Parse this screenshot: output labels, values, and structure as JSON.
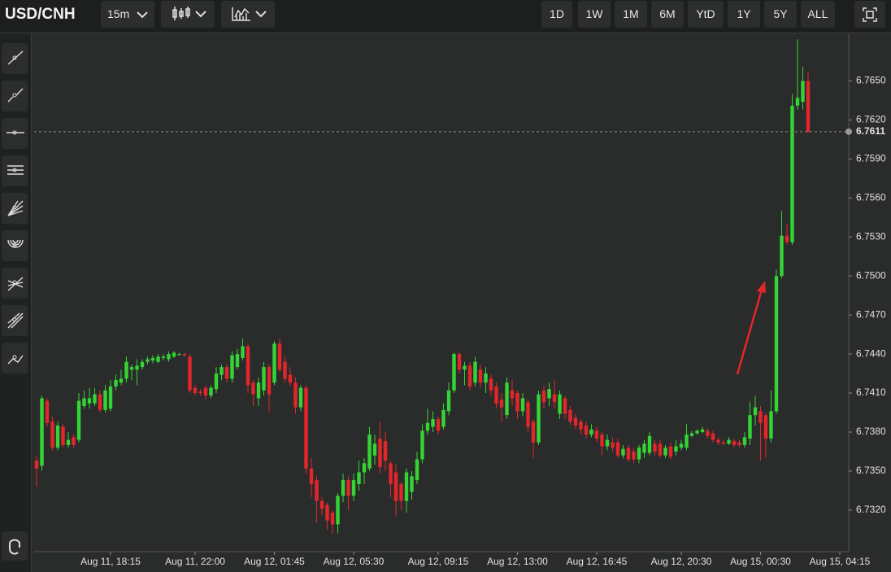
{
  "toolbar": {
    "interval": "15m",
    "ranges": [
      "1D",
      "1W",
      "1M",
      "6M",
      "YtD",
      "1Y",
      "5Y",
      "ALL"
    ]
  },
  "chart_data": {
    "type": "candlestick",
    "title": "USD/CNH",
    "up_color": "#35d435",
    "down_color": "#e3262c",
    "grid": false,
    "ylim": [
      6.7288,
      6.7686
    ],
    "yticks": [
      {
        "value": 6.732,
        "label": "6.7320"
      },
      {
        "value": 6.735,
        "label": "6.7350"
      },
      {
        "value": 6.738,
        "label": "6.7380"
      },
      {
        "value": 6.741,
        "label": "6.7410"
      },
      {
        "value": 6.744,
        "label": "6.7440"
      },
      {
        "value": 6.747,
        "label": "6.7470"
      },
      {
        "value": 6.75,
        "label": "6.7500"
      },
      {
        "value": 6.753,
        "label": "6.7530"
      },
      {
        "value": 6.756,
        "label": "6.7560"
      },
      {
        "value": 6.759,
        "label": "6.7590"
      },
      {
        "value": 6.762,
        "label": "6.7620"
      },
      {
        "value": 6.765,
        "label": "6.7650"
      }
    ],
    "last_price": 6.7611,
    "categories": [
      null,
      null,
      null,
      null,
      null,
      null,
      null,
      null,
      null,
      null,
      null,
      null,
      null,
      null,
      "Aug 11, 18:15",
      null,
      null,
      null,
      null,
      null,
      null,
      null,
      null,
      null,
      null,
      null,
      null,
      null,
      null,
      null,
      "Aug 11, 22:00",
      null,
      null,
      null,
      null,
      null,
      null,
      null,
      null,
      null,
      null,
      null,
      null,
      null,
      null,
      "Aug 12, 01:45",
      null,
      null,
      null,
      null,
      null,
      null,
      null,
      null,
      null,
      null,
      null,
      null,
      null,
      null,
      "Aug 12, 05:30",
      null,
      null,
      null,
      null,
      null,
      null,
      null,
      null,
      null,
      null,
      null,
      null,
      null,
      null,
      null,
      "Aug 12, 09:15",
      null,
      null,
      null,
      null,
      null,
      null,
      null,
      null,
      null,
      null,
      null,
      null,
      null,
      null,
      "Aug 12, 13:00",
      null,
      null,
      null,
      null,
      null,
      null,
      null,
      null,
      null,
      null,
      null,
      null,
      null,
      null,
      "Aug 12, 16:45",
      null,
      null,
      null,
      null,
      null,
      null,
      null,
      null,
      null,
      null,
      null,
      null,
      null,
      null,
      null,
      "Aug 12, 20:30",
      null,
      null,
      null,
      null,
      null,
      null,
      null,
      null,
      null,
      null,
      null,
      null,
      null,
      null,
      "Aug 15, 00:30",
      null,
      null,
      null,
      null,
      null,
      null,
      null,
      null,
      null,
      null,
      null,
      null,
      null,
      null,
      "Aug 15, 04:15"
    ],
    "open": [
      6.7358,
      6.7354,
      6.7404,
      6.7388,
      6.7368,
      6.7384,
      6.737,
      6.7376,
      6.7374,
      6.74,
      6.7402,
      6.7402,
      6.7409,
      6.7397,
      6.7398,
      6.7415,
      6.7418,
      6.7421,
      6.7428,
      6.7428,
      6.743,
      6.7434,
      6.7435,
      6.7434,
      6.7437,
      6.7436,
      6.7438,
      6.744,
      6.744,
      6.7438,
      6.7414,
      6.7411,
      6.7414,
      6.7408,
      6.7413,
      6.7424,
      6.743,
      6.7421,
      6.743,
      6.7437,
      6.7446,
      6.7418,
      6.7406,
      6.7412,
      6.743,
      6.7418,
      6.7448,
      6.7434,
      6.7424,
      6.7418,
      6.7399,
      6.7414,
      6.7352,
      6.7343,
      6.7327,
      6.7324,
      6.7318,
      6.7309,
      6.7331,
      6.7343,
      6.7331,
      6.734,
      6.7349,
      6.7352,
      6.7362,
      6.7375,
      6.7373,
      6.7356,
      6.7349,
      6.734,
      6.7327,
      6.7334,
      6.7343,
      6.7359,
      6.7381,
      6.7384,
      6.739,
      6.7384,
      6.7396,
      6.7412,
      6.744,
      6.7428,
      6.7431,
      6.7418,
      6.7428,
      6.7418,
      6.7421,
      6.7415,
      6.7405,
      6.7393,
      6.7412,
      6.741,
      6.7396,
      6.7403,
      6.7388,
      6.7372,
      6.7412,
      6.7406,
      6.7409,
      6.7394,
      6.7406,
      6.7397,
      6.7391,
      6.7388,
      6.7385,
      6.7378,
      6.7381,
      6.7378,
      6.7369,
      6.7372,
      6.7372,
      6.7362,
      6.7368,
      6.7365,
      6.7359,
      6.7364,
      6.7364,
      6.7371,
      6.7371,
      6.7362,
      6.7369,
      6.7365,
      6.7368,
      6.7368,
      6.7377,
      6.7379,
      6.738,
      6.7381,
      6.7379,
      6.7374,
      6.7372,
      6.7371,
      6.7373,
      6.7372,
      6.737,
      6.7375,
      6.7393,
      6.7396,
      6.7393,
      6.7375,
      6.7396,
      6.75,
      6.7531,
      6.7526,
      6.7631,
      6.7634,
      6.765,
      null,
      null,
      null,
      null,
      null,
      null
    ],
    "high": [
      6.7362,
      6.7408,
      6.7406,
      6.7392,
      6.7388,
      6.7386,
      6.738,
      6.7378,
      6.741,
      6.7412,
      6.7414,
      6.7414,
      6.7412,
      6.7416,
      6.742,
      6.7424,
      6.7428,
      6.7438,
      6.7432,
      6.7436,
      6.7436,
      6.7438,
      6.7439,
      6.744,
      6.744,
      6.7442,
      6.7442,
      6.7441,
      6.7441,
      6.744,
      6.7416,
      6.7413,
      6.7416,
      6.7416,
      6.743,
      6.7432,
      6.7432,
      6.7442,
      6.7444,
      6.7452,
      6.7448,
      6.742,
      6.7422,
      6.7434,
      6.7432,
      6.745,
      6.7452,
      6.7438,
      6.743,
      6.7422,
      6.7416,
      6.7416,
      6.736,
      6.7346,
      6.733,
      6.7326,
      6.732,
      6.7333,
      6.7348,
      6.7346,
      6.7348,
      6.7358,
      6.736,
      6.7384,
      6.7378,
      6.7388,
      6.738,
      6.7358,
      6.7355,
      6.7342,
      6.7352,
      6.735,
      6.7365,
      6.7386,
      6.7398,
      6.7396,
      6.7392,
      6.7402,
      6.7418,
      6.7441,
      6.7442,
      6.7434,
      6.7434,
      6.7438,
      6.7432,
      6.743,
      6.7424,
      6.7418,
      6.741,
      6.7422,
      6.742,
      6.7412,
      6.741,
      6.7405,
      6.739,
      6.7412,
      6.7416,
      6.7418,
      6.742,
      6.7412,
      6.7408,
      6.74,
      6.7394,
      6.739,
      6.7388,
      6.7386,
      6.7384,
      6.738,
      6.7378,
      6.7376,
      6.7375,
      6.737,
      6.737,
      6.7368,
      6.737,
      6.7374,
      6.738,
      6.7374,
      6.7374,
      6.737,
      6.7372,
      6.7374,
      6.7374,
      6.7386,
      6.7381,
      6.7382,
      6.7384,
      6.7383,
      6.7381,
      6.7376,
      6.7374,
      6.7376,
      6.7375,
      6.7374,
      6.738,
      6.7403,
      6.7408,
      6.74,
      6.7395,
      6.7412,
      6.7505,
      6.755,
      6.754,
      6.764,
      6.7682,
      6.7661,
      6.7657,
      null,
      null,
      null,
      null,
      null,
      null
    ],
    "low": [
      6.7338,
      6.735,
      6.7384,
      6.7366,
      6.7366,
      6.7368,
      6.7368,
      6.7368,
      6.7372,
      6.7398,
      6.7398,
      6.74,
      6.7395,
      6.7395,
      6.7396,
      6.7412,
      6.7416,
      6.7418,
      6.742,
      6.7416,
      6.7428,
      6.7432,
      6.7433,
      6.7433,
      6.7435,
      6.7434,
      6.7437,
      6.7439,
      6.7438,
      6.741,
      6.7408,
      6.7408,
      6.7405,
      6.7406,
      6.741,
      6.742,
      6.7418,
      6.7418,
      6.7428,
      6.7435,
      6.741,
      6.74,
      6.74,
      6.7408,
      6.7395,
      6.7416,
      6.7426,
      6.7418,
      6.7415,
      6.7394,
      6.7396,
      6.7348,
      6.733,
      6.731,
      6.7316,
      6.7305,
      6.7302,
      6.7302,
      6.7326,
      6.732,
      6.7327,
      6.7335,
      6.734,
      6.735,
      6.7355,
      6.7348,
      6.735,
      6.733,
      6.7315,
      6.732,
      6.7318,
      6.7328,
      6.734,
      6.7356,
      6.7378,
      6.738,
      6.7378,
      6.7382,
      6.7393,
      6.741,
      6.7425,
      6.7416,
      6.7412,
      6.7415,
      6.7414,
      6.741,
      6.7408,
      6.7398,
      6.7388,
      6.739,
      6.74,
      6.739,
      6.7392,
      6.738,
      6.736,
      6.737,
      6.7398,
      6.74,
      6.7398,
      6.739,
      6.739,
      6.7385,
      6.7382,
      6.7378,
      6.7375,
      6.7376,
      6.7372,
      6.7362,
      6.7366,
      6.7365,
      6.736,
      6.736,
      6.7357,
      6.7356,
      6.7356,
      6.736,
      6.7362,
      6.7362,
      6.736,
      6.736,
      6.7359,
      6.7362,
      6.7366,
      6.7366,
      6.7376,
      6.7378,
      6.7379,
      6.7375,
      6.7372,
      6.737,
      6.737,
      6.737,
      6.7368,
      6.7368,
      6.7368,
      6.737,
      6.7385,
      6.7358,
      6.736,
      6.7372,
      6.7394,
      6.7498,
      6.7524,
      6.7524,
      6.7628,
      6.7628,
      6.761,
      null,
      null,
      null,
      null,
      null,
      null
    ],
    "close": [
      6.7352,
      6.7406,
      6.7387,
      6.7368,
      6.7385,
      6.737,
      6.7374,
      6.737,
      6.7404,
      6.7406,
      6.7406,
      6.7409,
      6.7397,
      6.7412,
      6.7415,
      6.742,
      6.7421,
      6.7434,
      6.743,
      6.7431,
      6.7434,
      6.7436,
      6.7437,
      6.7438,
      6.7438,
      6.744,
      6.7441,
      6.744,
      6.7439,
      6.7412,
      6.741,
      6.741,
      6.7408,
      6.7414,
      6.7425,
      6.743,
      6.7421,
      6.7439,
      6.744,
      6.7446,
      6.7416,
      6.7409,
      6.7418,
      6.743,
      6.7409,
      6.7448,
      6.7428,
      6.7421,
      6.7418,
      6.7399,
      6.7414,
      6.7352,
      6.734,
      6.7327,
      6.7321,
      6.7312,
      6.7309,
      6.7331,
      6.7343,
      6.7331,
      6.7343,
      6.7349,
      6.7356,
      6.7378,
      6.7371,
      6.7353,
      6.7358,
      6.734,
      6.7327,
      6.7327,
      6.7349,
      6.7346,
      6.7359,
      6.7381,
      6.7387,
      6.739,
      6.7381,
      6.7397,
      6.7412,
      6.744,
      6.7428,
      6.7431,
      6.7415,
      6.7434,
      6.7418,
      6.7425,
      6.7412,
      6.7402,
      6.7399,
      6.7418,
      6.7406,
      6.7396,
      6.7406,
      6.7384,
      6.7372,
      6.7409,
      6.7403,
      6.7413,
      6.7403,
      6.7409,
      6.7394,
      6.7388,
      6.7385,
      6.7382,
      6.7378,
      6.7382,
      6.7375,
      6.7369,
      6.7374,
      6.7368,
      6.7362,
      6.7367,
      6.7359,
      6.7359,
      6.7368,
      6.7371,
      6.7377,
      6.7365,
      6.7362,
      6.7368,
      6.7361,
      6.7369,
      6.7371,
      6.7378,
      6.7379,
      6.7381,
      6.7382,
      6.7377,
      6.7374,
      6.7372,
      6.7371,
      6.7374,
      6.737,
      6.737,
      6.7376,
      6.7393,
      6.7399,
      6.7387,
      6.7375,
      6.7396,
      6.75,
      6.7531,
      6.7526,
      6.7631,
      6.7637,
      6.765,
      6.7611,
      null,
      null,
      null,
      null,
      null,
      null
    ]
  }
}
